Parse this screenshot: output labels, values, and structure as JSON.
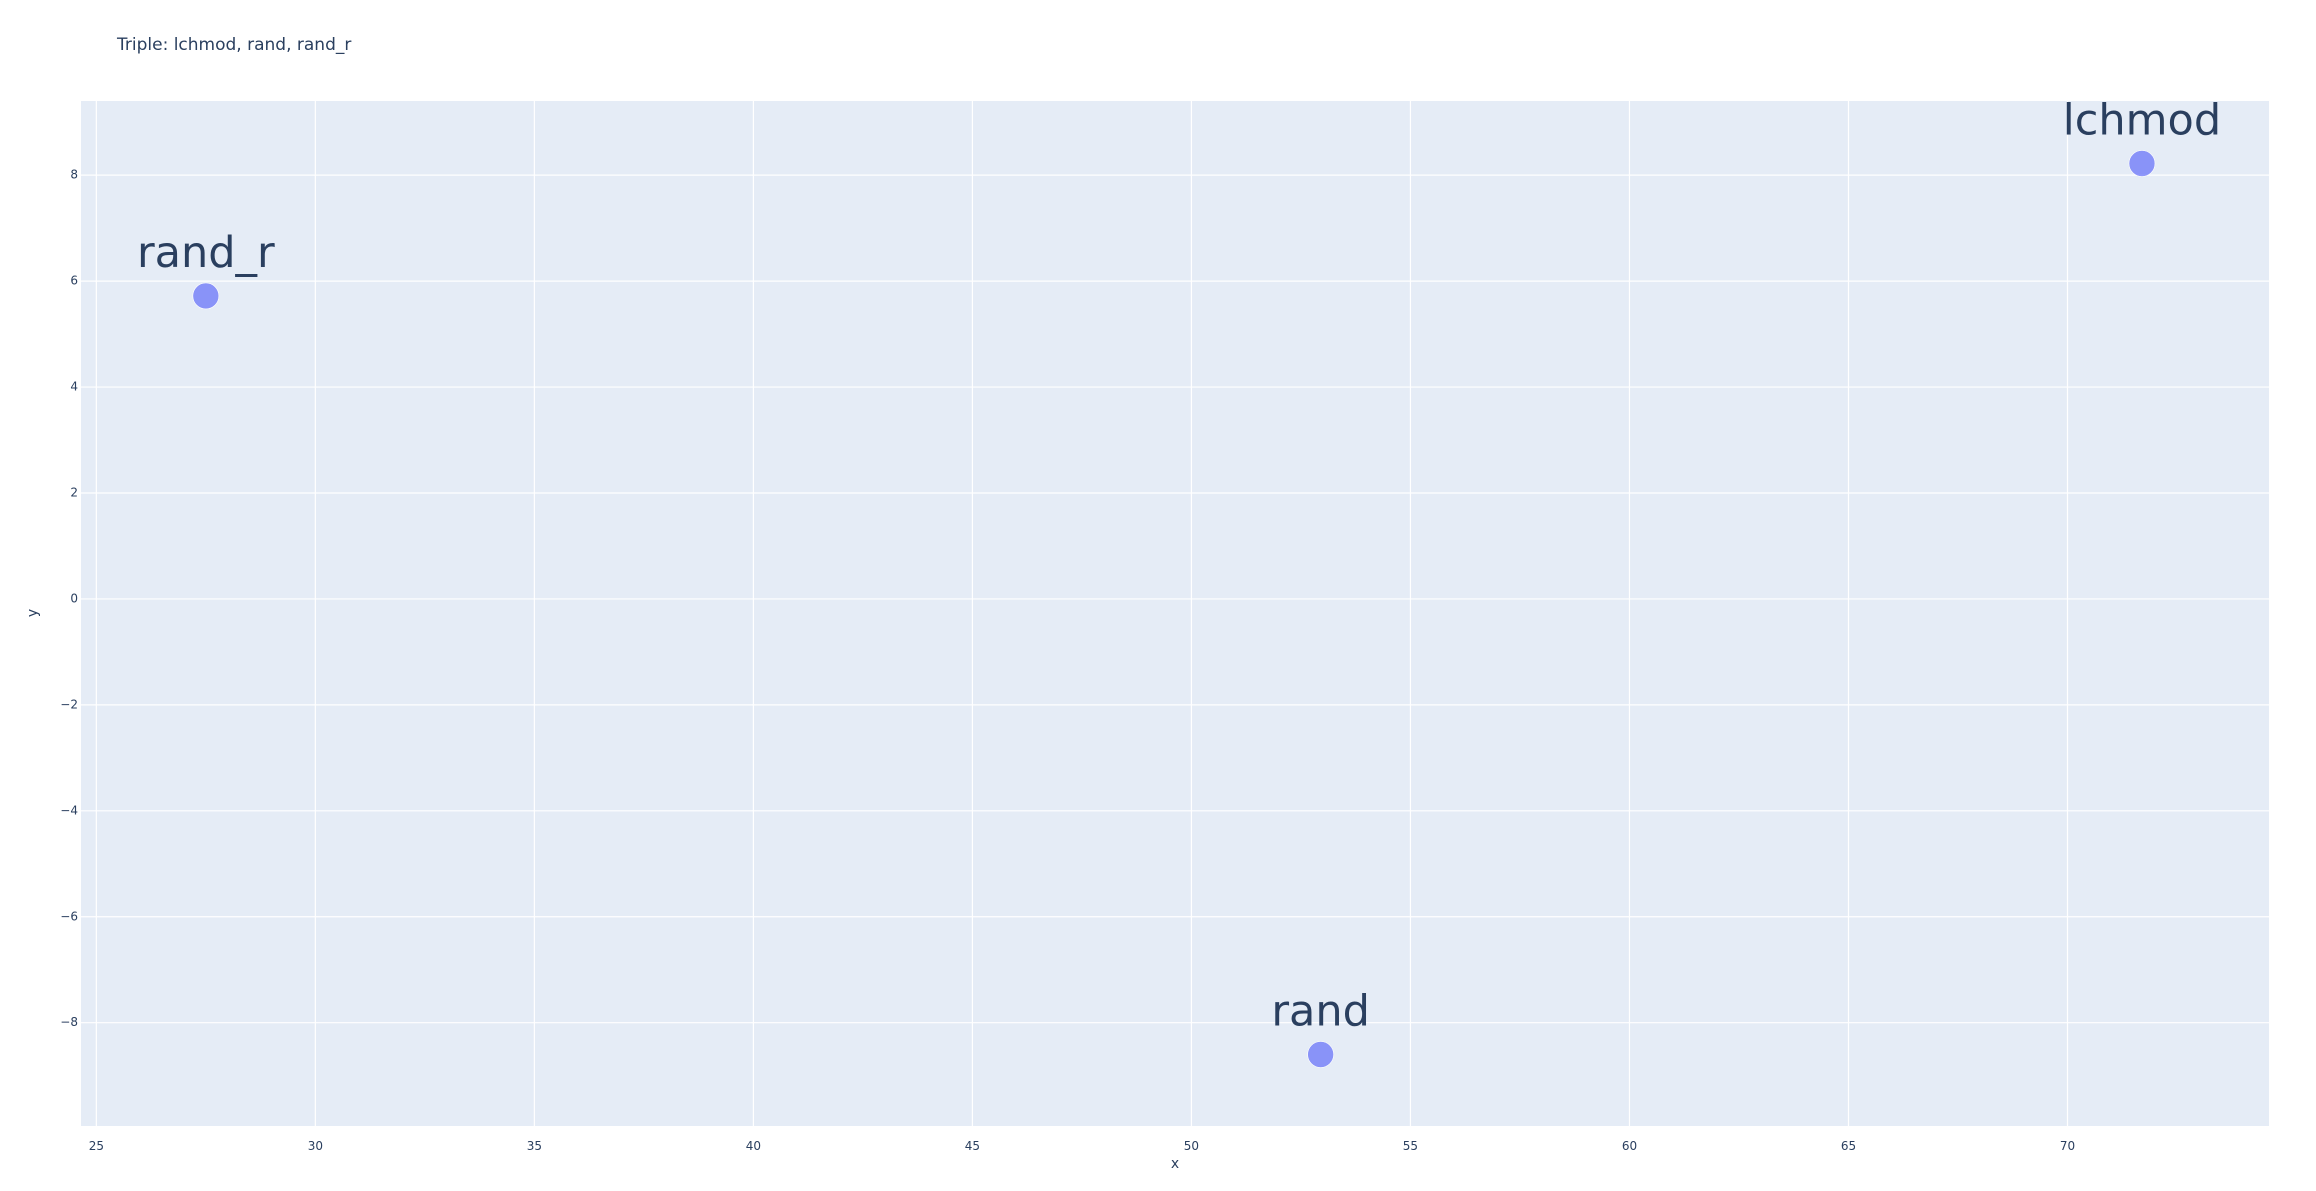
{
  "chart_data": {
    "type": "scatter",
    "title": "Triple: lchmod, rand, rand_r",
    "xlabel": "x",
    "ylabel": "y",
    "xlim": [
      24.65,
      74.6
    ],
    "ylim": [
      -9.95,
      9.4
    ],
    "x_ticks": [
      25,
      30,
      35,
      40,
      45,
      50,
      55,
      60,
      65,
      70
    ],
    "y_ticks": [
      8,
      6,
      4,
      2,
      0,
      -2,
      -4,
      -6,
      -8
    ],
    "grid": true,
    "legend": "none",
    "marker_color": "#636efa",
    "plot_background": "#e5ecf6",
    "points": [
      {
        "label": "lchmod",
        "x": 71.7,
        "y": 8.22
      },
      {
        "label": "rand",
        "x": 52.95,
        "y": -8.6
      },
      {
        "label": "rand_r",
        "x": 27.5,
        "y": 5.72
      }
    ]
  }
}
